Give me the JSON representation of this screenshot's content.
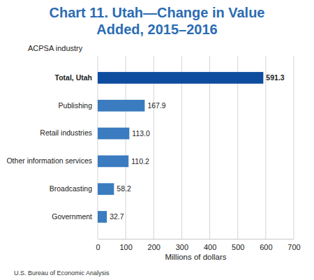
{
  "chart_data": {
    "type": "bar",
    "orientation": "horizontal",
    "title": "Chart 11. Utah—Change in Value Added, 2015–2016",
    "y_label": "ACPSA industry",
    "x_label": "Millions of dollars",
    "source": "U.S. Bureau of Economic Analysis",
    "categories": [
      "Total, Utah",
      "Publishing",
      "Retail industries",
      "Other information services",
      "Broadcasting",
      "Government"
    ],
    "values": [
      591.3,
      167.9,
      113.0,
      110.2,
      58.2,
      32.7
    ],
    "value_labels": [
      "591.3",
      "167.9",
      "113.0",
      "110.2",
      "58.2",
      "32.7"
    ],
    "colors": [
      "#0d4c9e",
      "#3b7bbf",
      "#3b7bbf",
      "#3b7bbf",
      "#3b7bbf",
      "#3b7bbf"
    ],
    "xlim": [
      0,
      700
    ],
    "xticks": [
      0,
      100,
      200,
      300,
      400,
      500,
      600,
      700
    ],
    "grid": true,
    "data_labels": true
  }
}
